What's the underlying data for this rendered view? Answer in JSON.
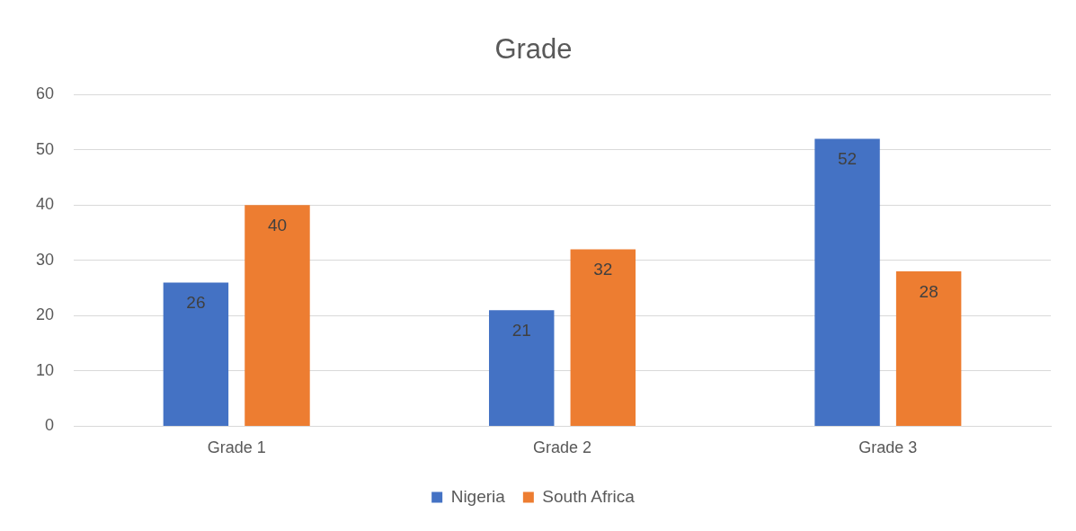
{
  "chart_data": {
    "type": "bar",
    "title": "Grade",
    "categories": [
      "Grade 1",
      "Grade 2",
      "Grade 3"
    ],
    "series": [
      {
        "name": "Nigeria",
        "color": "#4472c4",
        "values": [
          26,
          21,
          52
        ]
      },
      {
        "name": "South Africa",
        "color": "#ed7d31",
        "values": [
          40,
          32,
          28
        ]
      }
    ],
    "ylim": [
      0,
      60
    ],
    "yticks": [
      0,
      10,
      20,
      30,
      40,
      50,
      60
    ],
    "grid": "y",
    "legend": "bottom",
    "data_labels": true
  }
}
